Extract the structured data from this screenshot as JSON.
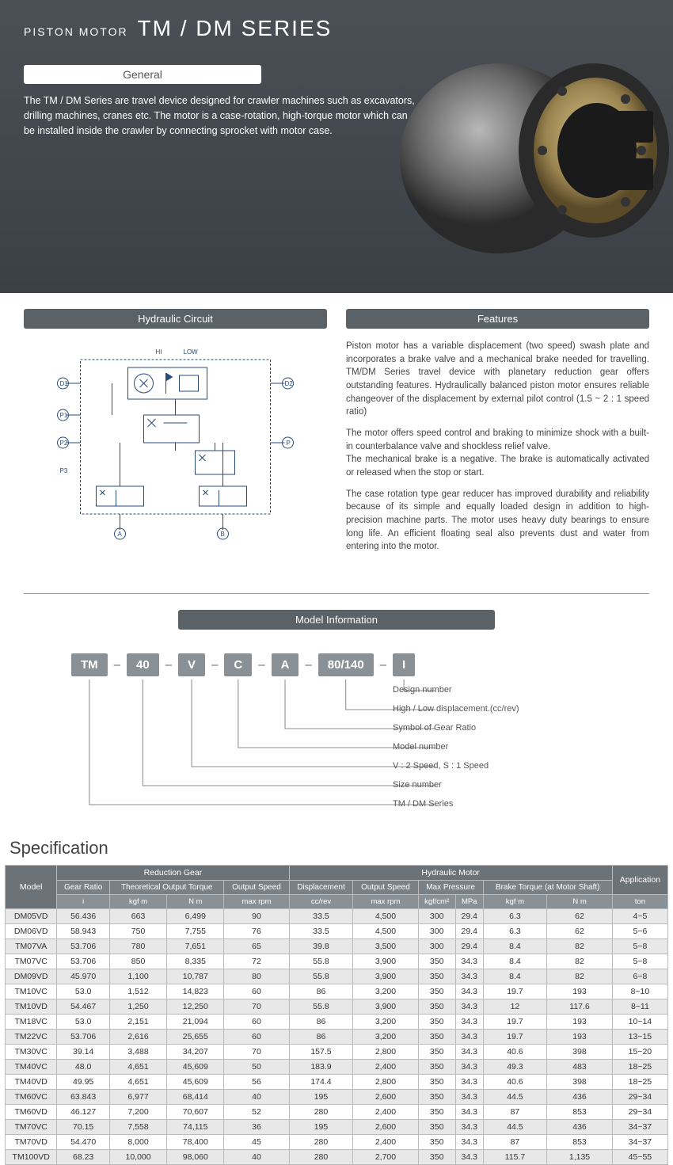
{
  "hero": {
    "overline": "PISTON MOTOR",
    "title": "TM / DM SERIES",
    "general_label": "General",
    "desc": "The TM / DM Series are travel device designed for crawler machines such as excavators, drilling machines, cranes etc. The motor is a case-rotation, high-torque motor which can be installed inside the crawler by connecting sprocket with motor case."
  },
  "sections": {
    "hydraulic_circuit": "Hydraulic Circuit",
    "features": "Features",
    "model_info": "Model Information",
    "spec": "Specification"
  },
  "features": {
    "p1": "Piston motor has a variable displacement (two speed) swash plate and incorporates a brake valve and a mechanical brake needed for travelling. TM/DM Series travel device with planetary reduction gear offers outstanding features. Hydraulically balanced piston motor ensures reliable changeover of the displacement by external pilot control (1.5 ~ 2 : 1 speed ratio)",
    "p2": "The motor offers speed control and braking to minimize shock with a built-in counterbalance valve and shockless relief valve.\nThe mechanical brake is a negative. The brake is automatically activated or released when the stop or start.",
    "p3": "The case rotation type gear reducer has improved durability and reliability because of its simple and equally loaded design in addition to high-precision machine parts. The motor uses heavy duty bearings to ensure long life. An efficient floating seal also prevents dust and water from entering into the motor."
  },
  "model_code": {
    "parts": [
      "TM",
      "40",
      "V",
      "C",
      "A",
      "80/140",
      "I"
    ],
    "legend": [
      "Design number",
      "High / Low displacement.(cc/rev)",
      "Symbol of Gear Ratio",
      "Model number",
      "V : 2 Speed, S : 1 Speed",
      "Size number",
      "TM / DM Series"
    ]
  },
  "circuit": {
    "hi": "HI",
    "low": "LOW",
    "ports": [
      "D1",
      "D2",
      "P1",
      "P2",
      "P3",
      "P",
      "A",
      "B"
    ]
  },
  "spec_table": {
    "top_groups": [
      "Reduction Gear",
      "Hydraulic Motor",
      "Application"
    ],
    "subheads": [
      "Gear Ratio",
      "Theoretical Output Torque",
      "Output Speed",
      "Displacement",
      "Output Speed",
      "Max Pressure",
      "Brake Torque (at Motor Shaft)"
    ],
    "units": [
      "i",
      "kgf m",
      "N m",
      "max rpm",
      "cc/rev",
      "max rpm",
      "kgf/cm²",
      "MPa",
      "kgf m",
      "N m",
      "ton"
    ],
    "model_head": "Model",
    "rows": [
      [
        "DM05VD",
        "56.436",
        "663",
        "6,499",
        "90",
        "33.5",
        "4,500",
        "300",
        "29.4",
        "6.3",
        "62",
        "4~5"
      ],
      [
        "DM06VD",
        "58.943",
        "750",
        "7,755",
        "76",
        "33.5",
        "4,500",
        "300",
        "29.4",
        "6.3",
        "62",
        "5~6"
      ],
      [
        "TM07VA",
        "53.706",
        "780",
        "7,651",
        "65",
        "39.8",
        "3,500",
        "300",
        "29.4",
        "8.4",
        "82",
        "5~8"
      ],
      [
        "TM07VC",
        "53.706",
        "850",
        "8,335",
        "72",
        "55.8",
        "3,900",
        "350",
        "34.3",
        "8.4",
        "82",
        "5~8"
      ],
      [
        "DM09VD",
        "45.970",
        "1,100",
        "10,787",
        "80",
        "55.8",
        "3,900",
        "350",
        "34.3",
        "8.4",
        "82",
        "6~8"
      ],
      [
        "TM10VC",
        "53.0",
        "1,512",
        "14,823",
        "60",
        "86",
        "3,200",
        "350",
        "34.3",
        "19.7",
        "193",
        "8~10"
      ],
      [
        "TM10VD",
        "54.467",
        "1,250",
        "12,250",
        "70",
        "55.8",
        "3,900",
        "350",
        "34.3",
        "12",
        "117.6",
        "8~11"
      ],
      [
        "TM18VC",
        "53.0",
        "2,151",
        "21,094",
        "60",
        "86",
        "3,200",
        "350",
        "34.3",
        "19.7",
        "193",
        "10~14"
      ],
      [
        "TM22VC",
        "53.706",
        "2,616",
        "25,655",
        "60",
        "86",
        "3,200",
        "350",
        "34.3",
        "19.7",
        "193",
        "13~15"
      ],
      [
        "TM30VC",
        "39.14",
        "3,488",
        "34,207",
        "70",
        "157.5",
        "2,800",
        "350",
        "34.3",
        "40.6",
        "398",
        "15~20"
      ],
      [
        "TM40VC",
        "48.0",
        "4,651",
        "45,609",
        "50",
        "183.9",
        "2,400",
        "350",
        "34.3",
        "49.3",
        "483",
        "18~25"
      ],
      [
        "TM40VD",
        "49.95",
        "4,651",
        "45,609",
        "56",
        "174.4",
        "2,800",
        "350",
        "34.3",
        "40.6",
        "398",
        "18~25"
      ],
      [
        "TM60VC",
        "63.843",
        "6,977",
        "68,414",
        "40",
        "195",
        "2,600",
        "350",
        "34.3",
        "44.5",
        "436",
        "29~34"
      ],
      [
        "TM60VD",
        "46.127",
        "7,200",
        "70,607",
        "52",
        "280",
        "2,400",
        "350",
        "34.3",
        "87",
        "853",
        "29~34"
      ],
      [
        "TM70VC",
        "70.15",
        "7,558",
        "74,115",
        "36",
        "195",
        "2,600",
        "350",
        "34.3",
        "44.5",
        "436",
        "34~37"
      ],
      [
        "TM70VD",
        "54.470",
        "8,000",
        "78,400",
        "45",
        "280",
        "2,400",
        "350",
        "34.3",
        "87",
        "853",
        "34~37"
      ],
      [
        "TM100VD",
        "68.23",
        "10,000",
        "98,060",
        "40",
        "280",
        "2,700",
        "350",
        "34.3",
        "115.7",
        "1,135",
        "45~55"
      ]
    ]
  },
  "colors": {
    "hero_bg": "#3f464b",
    "bar_bg": "#5a6268",
    "box_bg": "#8a9196",
    "th_bg": "#6b7278"
  }
}
